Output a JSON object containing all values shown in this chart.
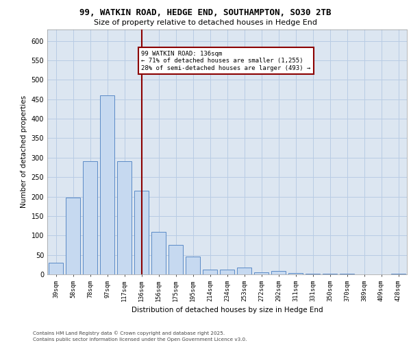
{
  "title_line1": "99, WATKIN ROAD, HEDGE END, SOUTHAMPTON, SO30 2TB",
  "title_line2": "Size of property relative to detached houses in Hedge End",
  "xlabel": "Distribution of detached houses by size in Hedge End",
  "ylabel": "Number of detached properties",
  "bar_labels": [
    "39sqm",
    "58sqm",
    "78sqm",
    "97sqm",
    "117sqm",
    "136sqm",
    "156sqm",
    "175sqm",
    "195sqm",
    "214sqm",
    "234sqm",
    "253sqm",
    "272sqm",
    "292sqm",
    "311sqm",
    "331sqm",
    "350sqm",
    "370sqm",
    "389sqm",
    "409sqm",
    "428sqm"
  ],
  "bar_values": [
    30,
    197,
    290,
    460,
    290,
    215,
    110,
    75,
    45,
    12,
    12,
    18,
    5,
    8,
    3,
    2,
    1,
    1,
    0,
    0,
    2
  ],
  "bar_color": "#c6d9f0",
  "bar_edgecolor": "#5a8ac6",
  "grid_color": "#b8cce4",
  "background_color": "#dce6f1",
  "marker_index": 5,
  "marker_line_color": "#8b0000",
  "annotation_line1": "99 WATKIN ROAD: 136sqm",
  "annotation_line2": "← 71% of detached houses are smaller (1,255)",
  "annotation_line3": "28% of semi-detached houses are larger (493) →",
  "annotation_box_color": "#ffffff",
  "annotation_box_edgecolor": "#8b0000",
  "ylim": [
    0,
    630
  ],
  "yticks": [
    0,
    50,
    100,
    150,
    200,
    250,
    300,
    350,
    400,
    450,
    500,
    550,
    600
  ],
  "footer_line1": "Contains HM Land Registry data © Crown copyright and database right 2025.",
  "footer_line2": "Contains public sector information licensed under the Open Government Licence v3.0."
}
